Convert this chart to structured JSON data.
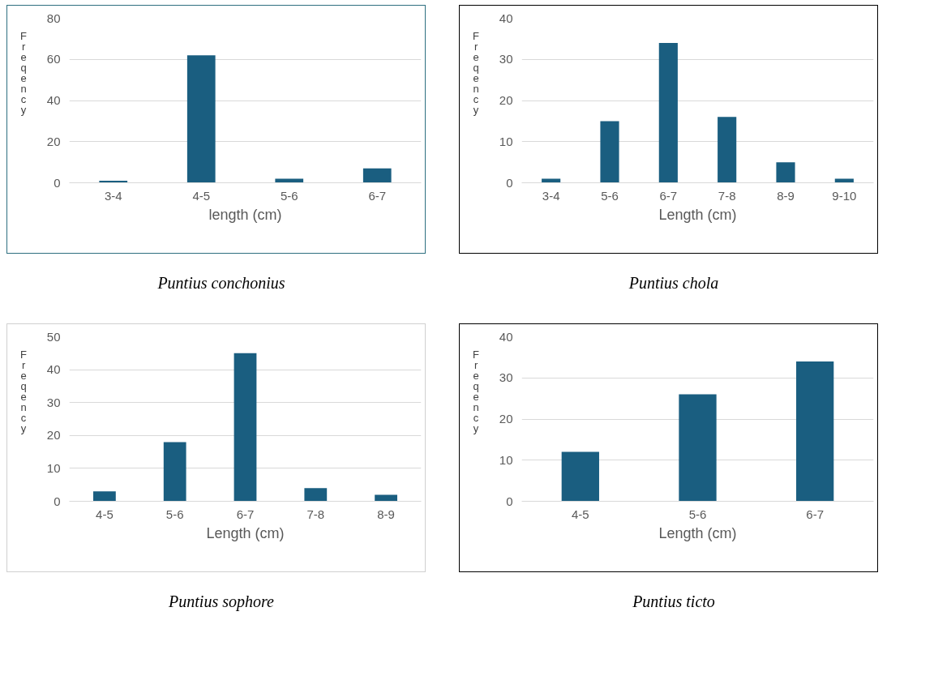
{
  "chart_data": [
    {
      "type": "bar",
      "xlabel": "length (cm)",
      "ylabel": "Freqency",
      "categories": [
        "3-4",
        "4-5",
        "5-6",
        "6-7"
      ],
      "values": [
        1,
        62,
        2,
        7
      ],
      "color": "#1a5e80",
      "ylim": [
        0,
        80
      ],
      "yticks": [
        0,
        20,
        40,
        60,
        80
      ],
      "grid": "y",
      "annotations": [
        "Puntius conchonius"
      ]
    },
    {
      "type": "bar",
      "xlabel": "Length (cm)",
      "ylabel": "Freqency",
      "categories": [
        "3-4",
        "5-6",
        "6-7",
        "7-8",
        "8-9",
        "9-10"
      ],
      "values": [
        1,
        15,
        34,
        16,
        5,
        1
      ],
      "color": "#1a5e80",
      "ylim": [
        0,
        40
      ],
      "yticks": [
        0,
        10,
        20,
        30,
        40
      ],
      "grid": "y",
      "annotations": [
        "Puntius chola"
      ]
    },
    {
      "type": "bar",
      "xlabel": "Length (cm)",
      "ylabel": "Freqency",
      "categories": [
        "4-5",
        "5-6",
        "6-7",
        "7-8",
        "8-9"
      ],
      "values": [
        3,
        18,
        45,
        4,
        2
      ],
      "color": "#1a5e80",
      "ylim": [
        0,
        50
      ],
      "yticks": [
        0,
        10,
        20,
        30,
        40,
        50
      ],
      "grid": "y",
      "annotations": [
        "Puntius sophore"
      ]
    },
    {
      "type": "bar",
      "xlabel": "Length (cm)",
      "ylabel": "Freqency",
      "categories": [
        "4-5",
        "5-6",
        "6-7"
      ],
      "values": [
        12,
        26,
        34
      ],
      "color": "#1a5e80",
      "ylim": [
        0,
        40
      ],
      "yticks": [
        0,
        10,
        20,
        30,
        40
      ],
      "grid": "y",
      "annotations": [
        "Puntius ticto"
      ]
    }
  ]
}
